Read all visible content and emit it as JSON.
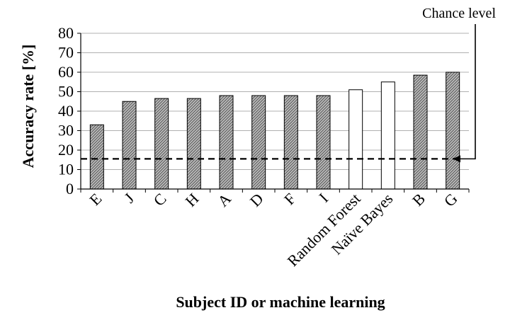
{
  "chart_data": {
    "type": "bar",
    "categories": [
      "E",
      "J",
      "C",
      "H",
      "A",
      "D",
      "F",
      "I",
      "Random Forest",
      "Naïve Bayes",
      "B",
      "G"
    ],
    "values": [
      33,
      45,
      46.5,
      46.5,
      48,
      48,
      48,
      48,
      51,
      55,
      58.5,
      60
    ],
    "bar_fill": [
      "hatched",
      "hatched",
      "hatched",
      "hatched",
      "hatched",
      "hatched",
      "hatched",
      "hatched",
      "white",
      "white",
      "hatched",
      "hatched"
    ],
    "ylabel": "Accuracy  rate [%]",
    "xlabel": "Subject ID or machine learning",
    "ylim": [
      0,
      80
    ],
    "yticks": [
      0,
      10,
      20,
      30,
      40,
      50,
      60,
      70,
      80
    ],
    "grid": true,
    "chance_level": {
      "label": "Chance level",
      "value": 15.5
    }
  }
}
